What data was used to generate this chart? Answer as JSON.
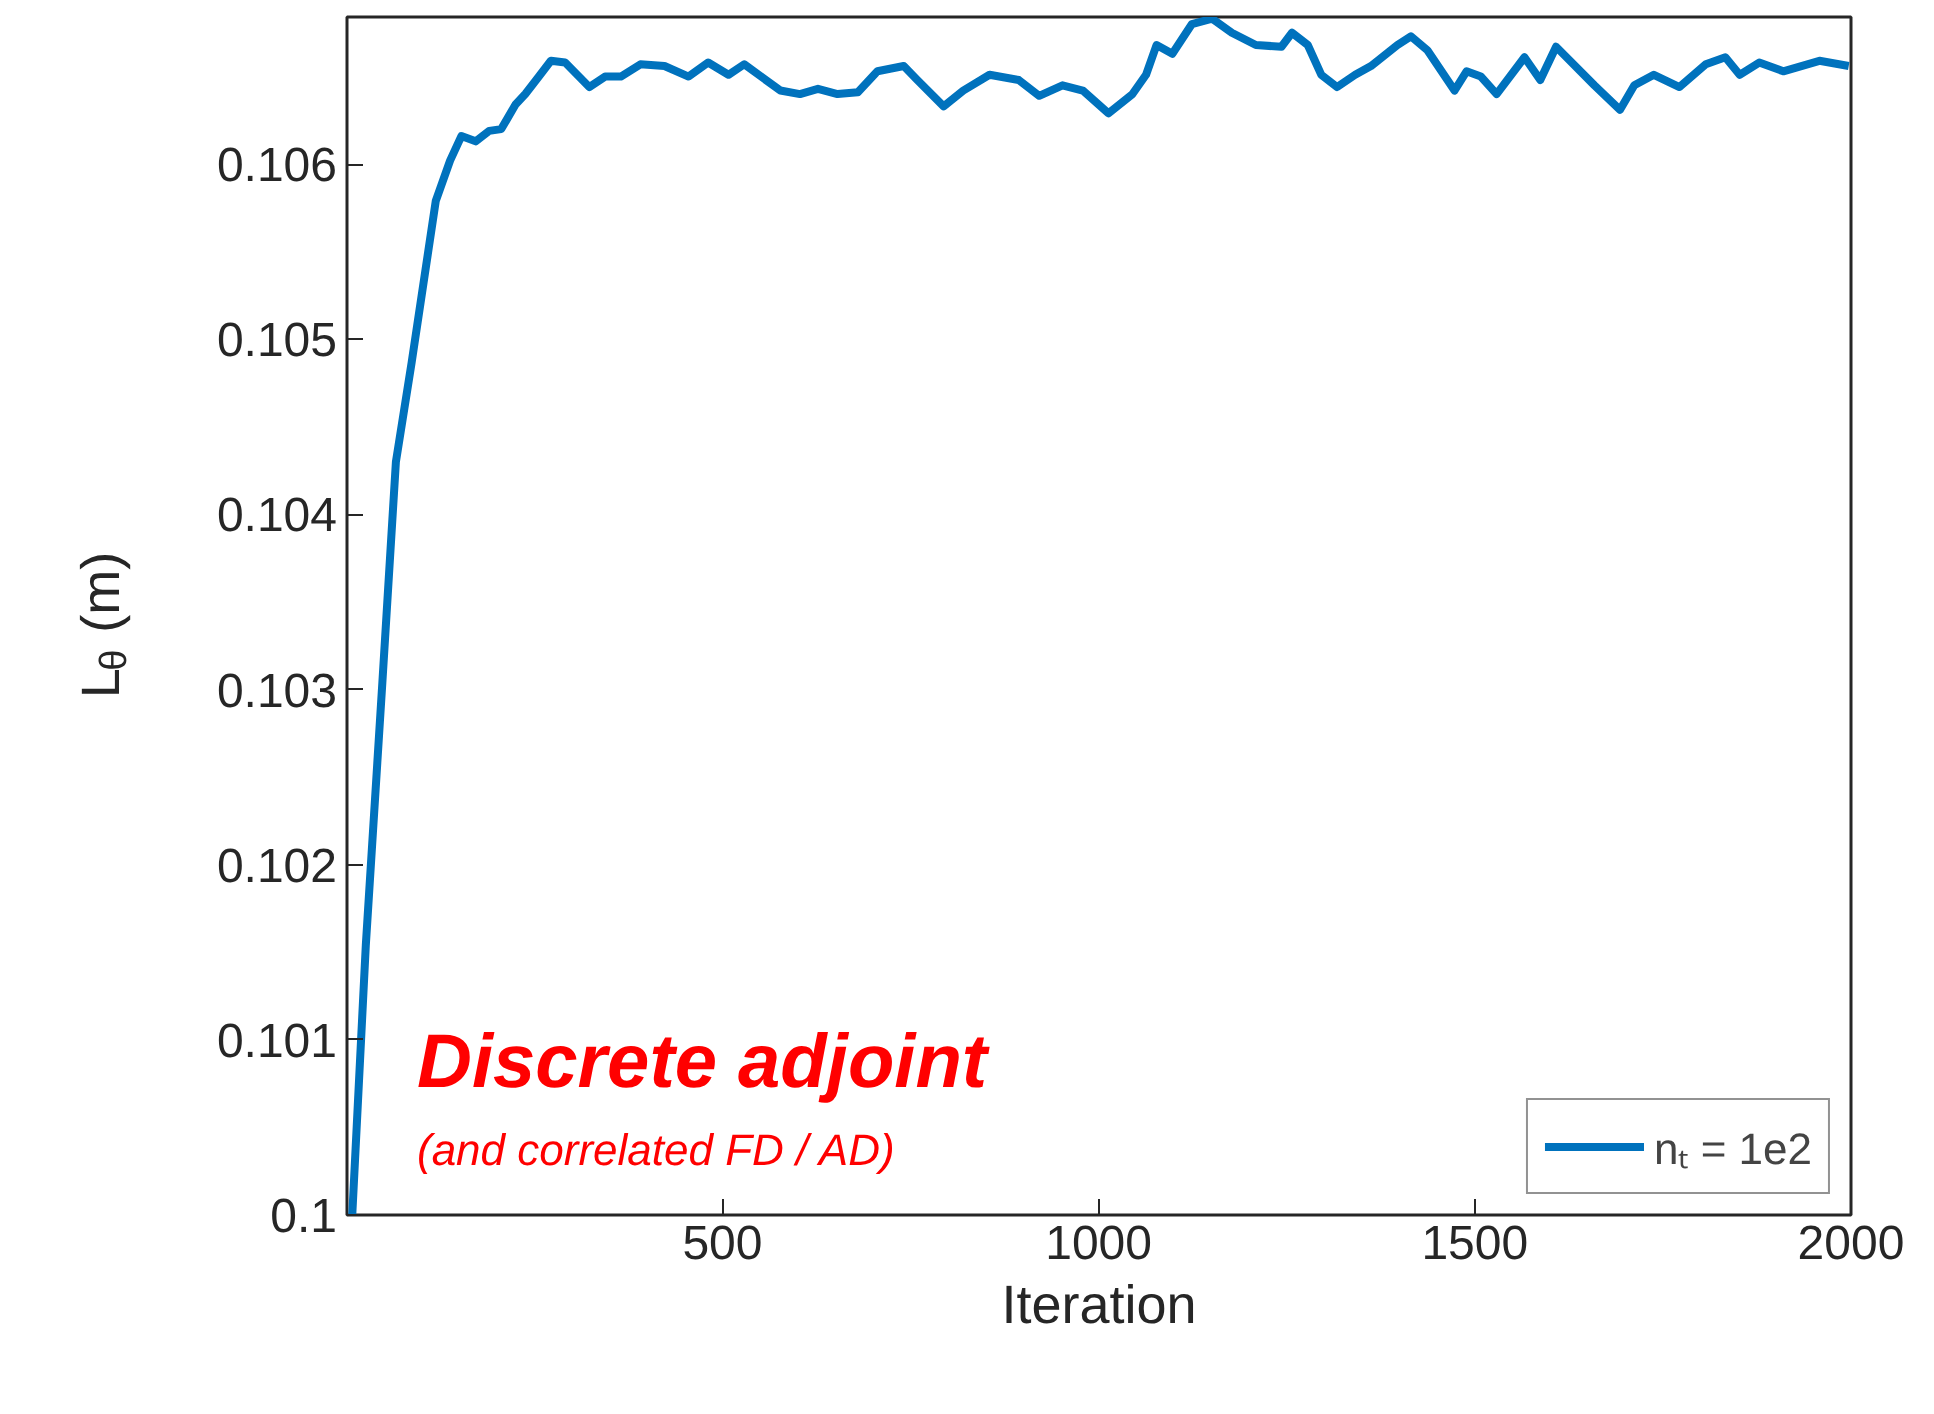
{
  "chart_data": {
    "type": "line",
    "xlabel": "Iteration",
    "ylabel": "L$_{θ}$ (m)",
    "xlim": [
      1,
      2000
    ],
    "ylim": [
      0.1,
      0.10684
    ],
    "xticks": [
      500,
      1000,
      1500,
      2000
    ],
    "yticks": [
      0.1,
      0.101,
      0.102,
      0.103,
      0.104,
      0.105,
      0.106
    ],
    "grid": false,
    "legend": "bottom right",
    "annotations": [
      "Discrete adjoint",
      "(and correlated FD / AD)"
    ],
    "series": [
      {
        "name": "nₜ = 1e2",
        "color": "#0072bd",
        "x": [
          8,
          26,
          48,
          66,
          87,
          119,
          138,
          153,
          172,
          190,
          206,
          225,
          238,
          256,
          272,
          291,
          323,
          344,
          365,
          391,
          423,
          455,
          481,
          508,
          529,
          577,
          603,
          627,
          653,
          680,
          706,
          741,
          759,
          794,
          820,
          855,
          894,
          921,
          952,
          979,
          1013,
          1045,
          1063,
          1077,
          1098,
          1124,
          1151,
          1177,
          1209,
          1243,
          1257,
          1278,
          1296,
          1317,
          1341,
          1362,
          1397,
          1415,
          1437,
          1473,
          1489,
          1508,
          1529,
          1566,
          1587,
          1608,
          1659,
          1693,
          1712,
          1738,
          1772,
          1807,
          1833,
          1852,
          1878,
          1910,
          1958,
          1997
        ],
        "values": [
          0.1,
          0.10154,
          0.10304,
          0.1043,
          0.10487,
          0.10579,
          0.10602,
          0.10616,
          0.10613,
          0.10619,
          0.1062,
          0.10634,
          0.1064,
          0.1065,
          0.10659,
          0.10658,
          0.10644,
          0.1065,
          0.1065,
          0.10657,
          0.10656,
          0.1065,
          0.10658,
          0.10651,
          0.10657,
          0.10642,
          0.1064,
          0.10643,
          0.1064,
          0.10641,
          0.10653,
          0.10656,
          0.10648,
          0.10633,
          0.10642,
          0.10651,
          0.10648,
          0.10639,
          0.10645,
          0.10642,
          0.10629,
          0.1064,
          0.10651,
          0.10668,
          0.10663,
          0.1068,
          0.10683,
          0.10675,
          0.10668,
          0.10667,
          0.10675,
          0.10668,
          0.10651,
          0.10644,
          0.10651,
          0.10656,
          0.10668,
          0.10673,
          0.10665,
          0.10642,
          0.10653,
          0.1065,
          0.1064,
          0.10661,
          0.10648,
          0.10667,
          0.10645,
          0.10631,
          0.10645,
          0.10651,
          0.10644,
          0.10657,
          0.10661,
          0.10651,
          0.10658,
          0.10653,
          0.10659,
          0.10656
        ]
      }
    ]
  }
}
